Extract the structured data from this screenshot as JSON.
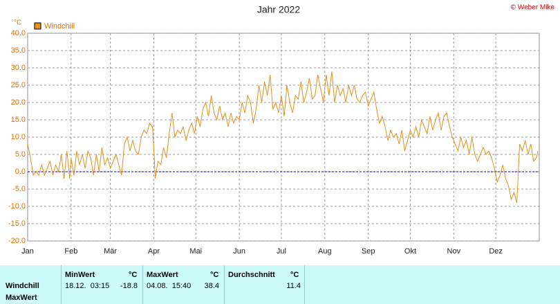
{
  "chart_data": {
    "type": "line",
    "title": "Jahr 2022",
    "copyright": "© Weber Mike",
    "y_label": "°C",
    "xlim": [
      0,
      365
    ],
    "xticks": [
      {
        "value": 0,
        "label": "Jan"
      },
      {
        "value": 31,
        "label": "Feb"
      },
      {
        "value": 59,
        "label": "Mär"
      },
      {
        "value": 90,
        "label": "Apr"
      },
      {
        "value": 120,
        "label": "Mai"
      },
      {
        "value": 151,
        "label": "Jun"
      },
      {
        "value": 181,
        "label": "Jul"
      },
      {
        "value": 212,
        "label": "Aug"
      },
      {
        "value": 243,
        "label": "Sep"
      },
      {
        "value": 273,
        "label": "Okt"
      },
      {
        "value": 304,
        "label": "Nov"
      },
      {
        "value": 334,
        "label": "Dez"
      }
    ],
    "ylim": [
      -20,
      40
    ],
    "yticks": [
      {
        "value": -20,
        "label": "-20.0"
      },
      {
        "value": -15,
        "label": "-15.0"
      },
      {
        "value": -10,
        "label": "-10.0"
      },
      {
        "value": -5,
        "label": "-5.0"
      },
      {
        "value": 0,
        "label": "0.0"
      },
      {
        "value": 5,
        "label": "5.0"
      },
      {
        "value": 10,
        "label": "10.0"
      },
      {
        "value": 15,
        "label": "15.0"
      },
      {
        "value": 20,
        "label": "20.0"
      },
      {
        "value": 25,
        "label": "25.0"
      },
      {
        "value": 30,
        "label": "30.0"
      },
      {
        "value": 35,
        "label": "35.0"
      },
      {
        "value": 40,
        "label": "40.0"
      }
    ],
    "grid": true,
    "legend": "top-left",
    "reference_line": {
      "value": 0,
      "color": "#0000b0"
    },
    "series": [
      {
        "name": "Windchill",
        "color": "#e8901a",
        "x": [
          0,
          2,
          4,
          6,
          8,
          10,
          12,
          14,
          16,
          18,
          20,
          22,
          24,
          26,
          28,
          30,
          31,
          33,
          35,
          37,
          39,
          41,
          43,
          45,
          47,
          49,
          51,
          53,
          55,
          57,
          59,
          61,
          63,
          65,
          67,
          69,
          71,
          73,
          75,
          77,
          79,
          81,
          83,
          85,
          87,
          89,
          90,
          91,
          93,
          95,
          97,
          99,
          101,
          103,
          105,
          107,
          109,
          111,
          113,
          115,
          117,
          119,
          121,
          123,
          125,
          127,
          129,
          131,
          133,
          135,
          137,
          139,
          141,
          143,
          145,
          147,
          149,
          151,
          153,
          155,
          157,
          159,
          161,
          163,
          165,
          167,
          169,
          171,
          173,
          175,
          177,
          179,
          181,
          183,
          185,
          187,
          189,
          191,
          193,
          195,
          197,
          199,
          201,
          203,
          205,
          207,
          209,
          211,
          213,
          215,
          217,
          219,
          221,
          223,
          225,
          227,
          229,
          231,
          233,
          235,
          237,
          239,
          241,
          243,
          245,
          247,
          249,
          251,
          253,
          255,
          257,
          259,
          261,
          263,
          265,
          267,
          269,
          271,
          273,
          275,
          277,
          279,
          281,
          283,
          285,
          287,
          289,
          291,
          293,
          295,
          297,
          299,
          301,
          303,
          305,
          307,
          309,
          311,
          313,
          315,
          317,
          319,
          321,
          323,
          325,
          327,
          329,
          331,
          333,
          335,
          337,
          339,
          341,
          343,
          345,
          347,
          349,
          351,
          353,
          355,
          357,
          359,
          361,
          363,
          364
        ],
        "values": [
          8,
          4,
          -1,
          0,
          -1,
          2,
          -1,
          1,
          3,
          -1,
          2,
          0,
          5,
          -2,
          6,
          -2,
          4,
          -1,
          6,
          2,
          5,
          1,
          6,
          4,
          -1,
          5,
          0,
          7,
          2,
          4,
          1,
          3,
          5,
          2,
          -1,
          8,
          10,
          6,
          9,
          6,
          5,
          10,
          12,
          11,
          14,
          13,
          7,
          -2,
          3,
          2,
          7,
          4,
          11,
          17,
          10,
          12,
          11,
          13,
          9,
          12,
          14,
          11,
          16,
          13,
          18,
          20,
          16,
          22,
          17,
          15,
          19,
          15,
          17,
          13,
          17,
          14,
          16,
          15,
          20,
          17,
          22,
          20,
          14,
          18,
          25,
          20,
          26,
          22,
          28,
          18,
          20,
          17,
          22,
          16,
          25,
          20,
          17,
          22,
          21,
          26,
          20,
          23,
          27,
          21,
          22,
          28,
          24,
          20,
          28,
          22,
          29,
          20,
          25,
          22,
          24,
          20,
          25,
          22,
          25,
          21,
          20,
          22,
          23,
          19,
          21,
          23,
          18,
          14,
          16,
          13,
          9,
          12,
          10,
          11,
          8,
          12,
          6,
          9,
          12,
          10,
          13,
          10,
          15,
          13,
          11,
          16,
          12,
          15,
          17,
          12,
          16,
          17,
          13,
          10,
          8,
          6,
          10,
          7,
          9,
          5,
          10,
          5,
          3,
          5,
          7,
          5,
          6,
          4,
          1,
          -3,
          -1,
          2,
          -2,
          -4,
          -8,
          -6,
          -9,
          8,
          6,
          9,
          5,
          8,
          3,
          4,
          6
        ]
      }
    ]
  },
  "table": {
    "headers": [
      "MinWert",
      "°C",
      "MaxWert",
      "°C",
      "Durchschnitt",
      "°C"
    ],
    "rows": [
      [
        "Windchill",
        "18.12.  03:15",
        "-18.8",
        "04.08.  15:40",
        "38.4",
        "11.4"
      ],
      [
        "MaxWert"
      ]
    ]
  }
}
